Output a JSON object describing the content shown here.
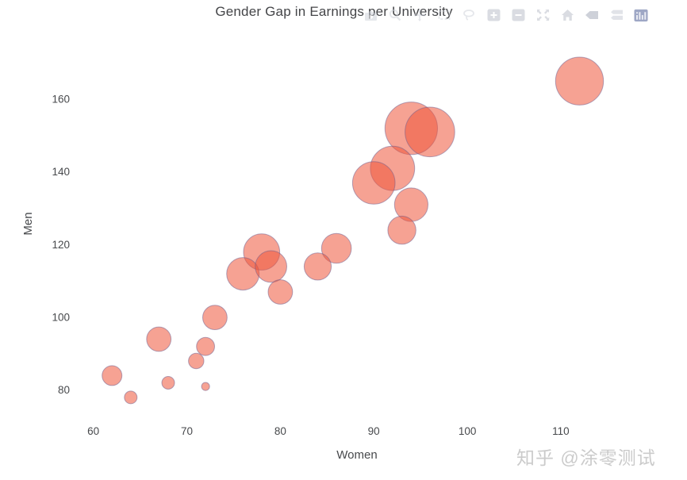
{
  "header": {
    "title": "Gender Gap in Earnings per University"
  },
  "modebar": {
    "buttons": [
      "download-png",
      "zoom",
      "pan",
      "box-select",
      "lasso-select",
      "zoom-in",
      "zoom-out",
      "autoscale",
      "reset-axes",
      "hover-closest",
      "hover-compare",
      "plotly-logo"
    ],
    "icon_color": "#ccd0d9",
    "logo_color": "#8e98bb"
  },
  "watermark": {
    "text": "知乎 @涂零测试"
  },
  "chart_data": {
    "type": "scatter",
    "subtype": "bubble",
    "title": "Gender Gap in Earnings per University",
    "xlabel": "Women",
    "ylabel": "Men",
    "x_ticks": [
      60,
      70,
      80,
      90,
      100,
      110
    ],
    "y_ticks": [
      80,
      100,
      120,
      140,
      160
    ],
    "xlim": [
      58.5,
      117.9
    ],
    "ylim": [
      77.1,
      174.2
    ],
    "grid": false,
    "legend": "none",
    "marker_color": "#EF553B",
    "marker_opacity": 0.55,
    "marker_line_color": "rgba(105,90,140,0.5)",
    "axis_text_color": "#47494c",
    "points": [
      {
        "women": 94,
        "men": 152,
        "size": 58
      },
      {
        "women": 96,
        "men": 151,
        "size": 55
      },
      {
        "women": 112,
        "men": 165,
        "size": 53
      },
      {
        "women": 92,
        "men": 141,
        "size": 49
      },
      {
        "women": 90,
        "men": 137,
        "size": 47
      },
      {
        "women": 78,
        "men": 118,
        "size": 40
      },
      {
        "women": 94,
        "men": 131,
        "size": 37
      },
      {
        "women": 76,
        "men": 112,
        "size": 36
      },
      {
        "women": 79,
        "men": 114,
        "size": 35
      },
      {
        "women": 86,
        "men": 119,
        "size": 33
      },
      {
        "women": 93,
        "men": 124,
        "size": 31
      },
      {
        "women": 84,
        "men": 114,
        "size": 30
      },
      {
        "women": 67,
        "men": 94,
        "size": 27
      },
      {
        "women": 73,
        "men": 100,
        "size": 27
      },
      {
        "women": 80,
        "men": 107,
        "size": 27
      },
      {
        "women": 62,
        "men": 84,
        "size": 22
      },
      {
        "women": 72,
        "men": 92,
        "size": 20
      },
      {
        "women": 71,
        "men": 88,
        "size": 17
      },
      {
        "women": 68,
        "men": 82,
        "size": 14
      },
      {
        "women": 64,
        "men": 78,
        "size": 14
      },
      {
        "women": 72,
        "men": 81,
        "size": 9
      }
    ]
  }
}
